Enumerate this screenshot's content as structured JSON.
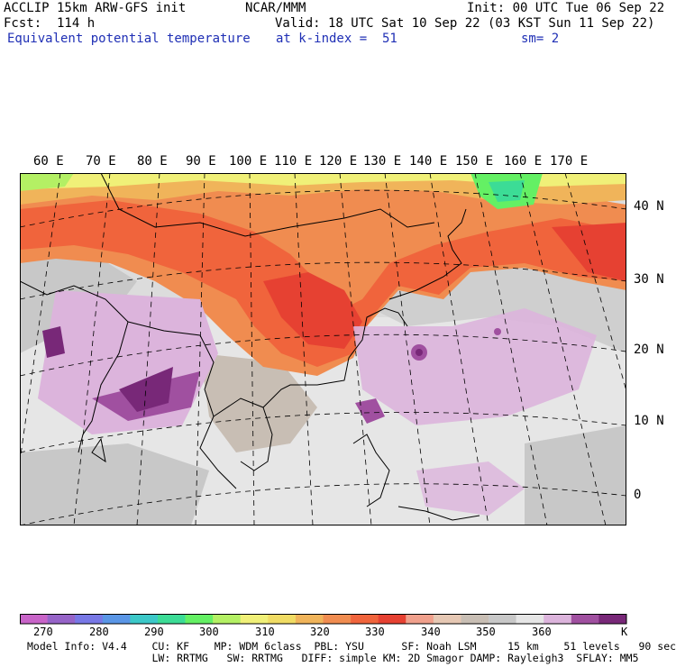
{
  "header": {
    "line1_left": "ACCLIP 15km ARW-GFS init",
    "line1_mid": "NCAR/MMM",
    "line1_right": "Init: 00 UTC Tue 06 Sep 22",
    "line2_left": "Fcst:  114 h",
    "line2_right": "Valid: 18 UTC Sat 10 Sep 22 (03 KST Sun 11 Sep 22)",
    "line3_field": "Equivalent potential temperature",
    "line3_level": "at k-index =  51",
    "line3_smooth": "sm= 2"
  },
  "map": {
    "lon_labels": [
      "60 E",
      "70 E",
      "80 E",
      "90 E",
      "100 E",
      "110 E",
      "120 E",
      "130 E",
      "140 E",
      "150 E",
      "160 E",
      "170 E"
    ],
    "lat_labels": [
      "40 N",
      "30 N",
      "20 N",
      "10 N",
      "0"
    ]
  },
  "colorbar": {
    "colors": [
      "#c864c8",
      "#9664c8",
      "#7878e6",
      "#5a96e6",
      "#3cc8c8",
      "#3cdc96",
      "#64f064",
      "#b4f064",
      "#f0f078",
      "#f0dc64",
      "#f0b45a",
      "#f08c50",
      "#f0643c",
      "#e64132",
      "#f0a08c",
      "#e6c8b4",
      "#c8beb4",
      "#c8c8c8",
      "#e6e6e6",
      "#dcb4dc",
      "#a050a0",
      "#782878"
    ],
    "labels": [
      "270",
      "280",
      "290",
      "300",
      "310",
      "320",
      "330",
      "340",
      "350",
      "360",
      "K"
    ]
  },
  "footer": {
    "line1": "Model Info: V4.4    CU: KF    MP: WDM 6class  PBL: YSU      SF: Noah LSM     15 km    51 levels   90 sec",
    "line2": "                    LW: RRTMG   SW: RRTMG   DIFF: simple KM: 2D Smagor DAMP: Rayleigh3  SFLAY: MM5"
  }
}
